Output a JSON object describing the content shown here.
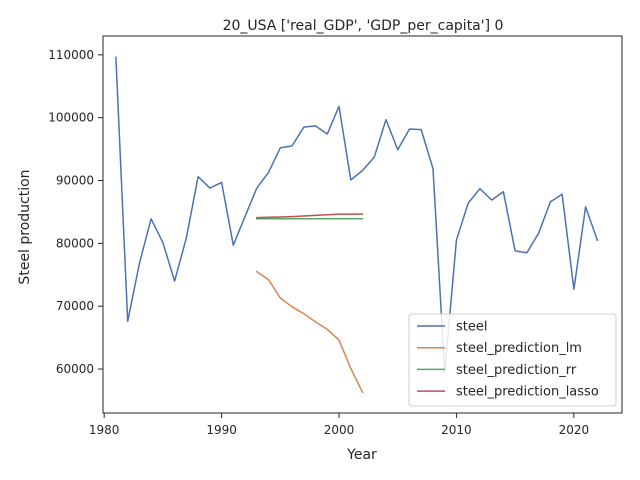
{
  "chart_data": {
    "type": "line",
    "title": "20_USA ['real_GDP', 'GDP_per_capita'] 0",
    "xlabel": "Year",
    "ylabel": "Steel production",
    "xlim": [
      1979.9,
      2024.1
    ],
    "ylim": [
      53000,
      113000
    ],
    "xticks": [
      1980,
      1990,
      2000,
      2010,
      2020
    ],
    "yticks": [
      60000,
      70000,
      80000,
      90000,
      100000,
      110000
    ],
    "legend_position": "lower-right",
    "grid": false,
    "series": [
      {
        "name": "steel",
        "color": "#4c72b0",
        "x": [
          1981,
          1982,
          1983,
          1984,
          1985,
          1986,
          1987,
          1988,
          1989,
          1990,
          1991,
          1992,
          1993,
          1994,
          1995,
          1996,
          1997,
          1998,
          1999,
          2000,
          2001,
          2002,
          2003,
          2004,
          2005,
          2006,
          2007,
          2008,
          2009,
          2010,
          2011,
          2012,
          2013,
          2014,
          2015,
          2016,
          2017,
          2018,
          2019,
          2020,
          2021,
          2022
        ],
        "y": [
          109600,
          67600,
          76800,
          83900,
          80100,
          74000,
          80900,
          90600,
          88800,
          89700,
          79700,
          84300,
          88800,
          91300,
          95200,
          95500,
          98500,
          98700,
          97400,
          101800,
          90100,
          91600,
          93700,
          99700,
          94900,
          98200,
          98100,
          91900,
          59400,
          80500,
          86400,
          88700,
          86900,
          88200,
          78800,
          78500,
          81600,
          86600,
          87800,
          72700,
          85800,
          80500
        ]
      },
      {
        "name": "steel_prediction_lm",
        "color": "#dd8452",
        "x": [
          1993,
          1994,
          1995,
          1996,
          1997,
          1998,
          1999,
          2000,
          2001,
          2002
        ],
        "y": [
          75500,
          74200,
          71300,
          69900,
          68800,
          67500,
          66300,
          64600,
          60100,
          56300
        ]
      },
      {
        "name": "steel_prediction_rr",
        "color": "#55a868",
        "x": [
          1993,
          1994,
          1995,
          1996,
          1997,
          1998,
          1999,
          2000,
          2001,
          2002
        ],
        "y": [
          83900,
          83900,
          83900,
          83900,
          83900,
          83900,
          83900,
          83900,
          83900,
          83900
        ]
      },
      {
        "name": "steel_prediction_lasso",
        "color": "#c44e52",
        "x": [
          1993,
          1994,
          1995,
          1996,
          1997,
          1998,
          1999,
          2000,
          2001,
          2002
        ],
        "y": [
          84100,
          84150,
          84200,
          84250,
          84350,
          84450,
          84550,
          84650,
          84650,
          84650
        ]
      }
    ]
  }
}
